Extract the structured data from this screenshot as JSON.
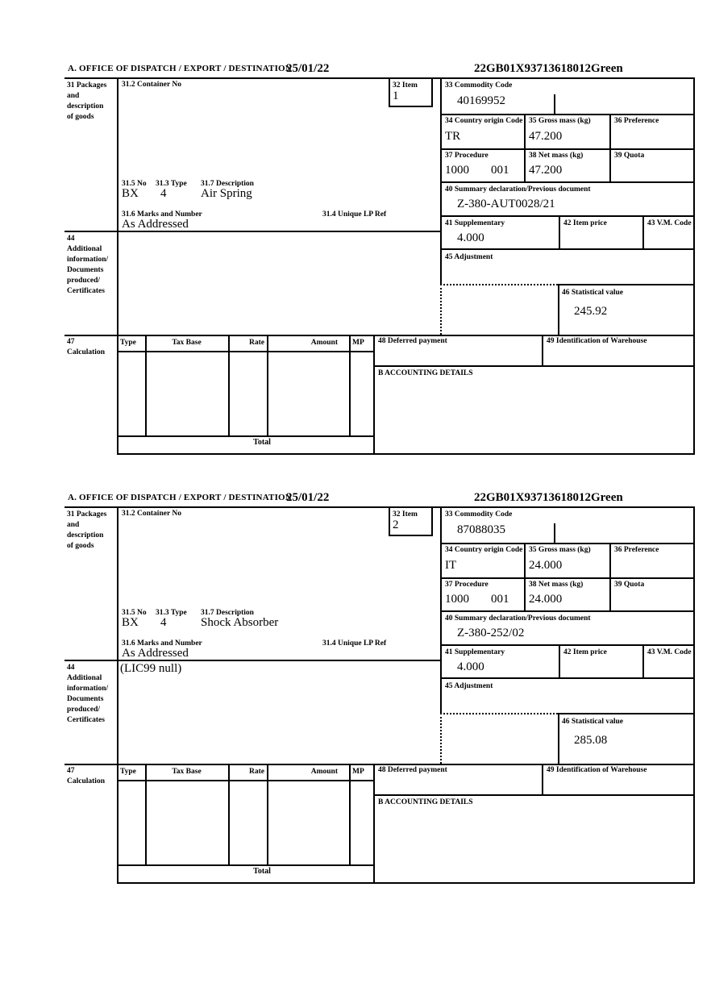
{
  "labels": {
    "office": "A.  OFFICE OF DISPATCH / EXPORT / DESTINATION",
    "box31": "31 Packages\nand\ndescription\nof goods",
    "box31_2": "31.2 Container No",
    "box32": "32 Item",
    "box33": "33 Commodity Code",
    "box34": "34 Country origin Code",
    "box35": "35 Gross mass (kg)",
    "box36": "36 Preference",
    "box37": "37 Procedure",
    "box38": "38 Net mass (kg)",
    "box39": "39 Quota",
    "box40": "40 Summary declaration/Previous document",
    "box41": "41 Supplementary",
    "box42": "42 Item price",
    "box43": "43 V.M. Code",
    "box44": "44\nAdditional\ninformation/\nDocuments\nproduced/\nCertificates",
    "box45": "45 Adjustment",
    "box46": "46 Statistical value",
    "box47": "47\nCalculation",
    "box48": "48 Deferred payment",
    "box49": "49 Identification of Warehouse",
    "box31_5": "31.5 No",
    "box31_3": "31.3 Type",
    "box31_7": "31.7 Description",
    "box31_6": "31.6 Marks and Number",
    "box31_4": "31.4 Unique LP Ref",
    "accounting": "B ACCOUNTING DETAILS",
    "calc_columns": [
      "Type",
      "Tax Base",
      "Rate",
      "Amount",
      "MP"
    ],
    "total": "Total"
  },
  "sections": [
    {
      "date": "25/01/22",
      "reference": "22GB01X93713618012",
      "routing": "Green",
      "item_number": "1",
      "commodity_code": "40169952",
      "country_origin_code": "TR",
      "gross_mass_kg": "47.200",
      "procedure": "1000",
      "procedure_extension": "001",
      "net_mass_kg": "47.200",
      "previous_document": "Z-380-AUT0028/21",
      "supplementary": "4.000",
      "statistical_value": "245.92",
      "package_no": "BX",
      "package_type": "4",
      "goods_description": "Air Spring",
      "marks_and_number": "As Addressed",
      "additional_information": ""
    },
    {
      "date": "25/01/22",
      "reference": "22GB01X93713618012",
      "routing": "Green",
      "item_number": "2",
      "commodity_code": "87088035",
      "country_origin_code": "IT",
      "gross_mass_kg": "24.000",
      "procedure": "1000",
      "procedure_extension": "001",
      "net_mass_kg": "24.000",
      "previous_document": "Z-380-252/02",
      "supplementary": "4.000",
      "statistical_value": "285.08",
      "package_no": "BX",
      "package_type": "4",
      "goods_description": "Shock Absorber",
      "marks_and_number": "As Addressed",
      "additional_information": "(LIC99 null)"
    }
  ]
}
